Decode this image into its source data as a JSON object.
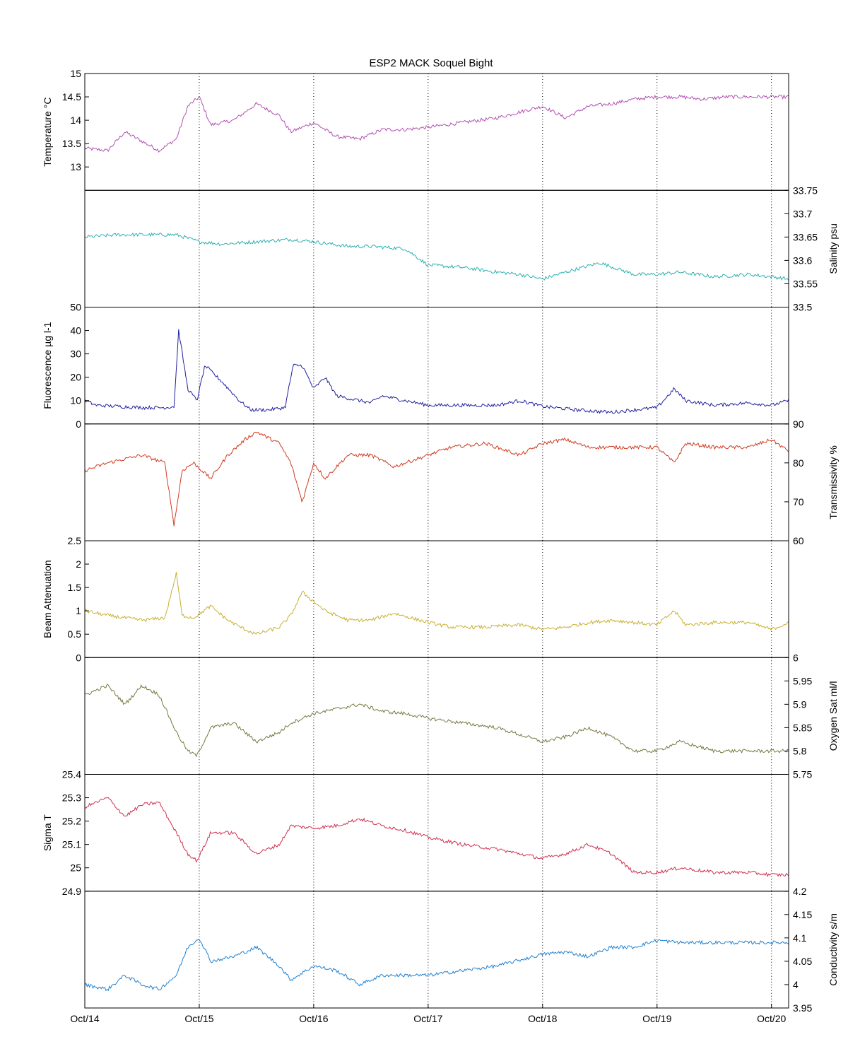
{
  "title": "ESP2 MACK  Soquel Bight",
  "chart_data": {
    "type": "line",
    "grid": "vertical dotted lines at day boundaries",
    "x_tick_labels": [
      "Oct/14",
      "Oct/15",
      "Oct/16",
      "Oct/17",
      "Oct/18",
      "Oct/19",
      "Oct/20"
    ],
    "x_ticks_days": [
      0,
      1,
      2,
      3,
      4,
      5,
      6
    ],
    "xlim_days": [
      0,
      6.15
    ],
    "panels": [
      {
        "ylabel": "Temperature °C",
        "axis_side": "left",
        "color": "#b050b0",
        "ylim": [
          12.5,
          15
        ],
        "ticks": [
          13,
          13.5,
          14,
          14.5,
          15
        ],
        "tick_labels": [
          "13",
          "13.5",
          "14",
          "14.5",
          "15"
        ],
        "x": [
          0,
          0.2,
          0.35,
          0.5,
          0.65,
          0.8,
          0.9,
          1.0,
          1.1,
          1.3,
          1.5,
          1.7,
          1.8,
          2.0,
          2.2,
          2.4,
          2.6,
          2.8,
          3.0,
          3.3,
          3.6,
          4.0,
          4.2,
          4.4,
          4.6,
          4.8,
          5.0,
          5.2,
          5.4,
          5.6,
          5.8,
          6.0,
          6.15
        ],
        "y": [
          13.4,
          13.35,
          13.75,
          13.55,
          13.35,
          13.6,
          14.3,
          14.5,
          13.9,
          14.0,
          14.35,
          14.1,
          13.75,
          13.95,
          13.65,
          13.6,
          13.8,
          13.8,
          13.85,
          13.95,
          14.05,
          14.3,
          14.05,
          14.3,
          14.35,
          14.45,
          14.5,
          14.5,
          14.45,
          14.5,
          14.5,
          14.5,
          14.5
        ]
      },
      {
        "ylabel": "Salinity psu",
        "axis_side": "right",
        "color": "#30b0b0",
        "ylim": [
          33.5,
          33.75
        ],
        "ticks": [
          33.5,
          33.55,
          33.6,
          33.65,
          33.7,
          33.75
        ],
        "tick_labels": [
          "33.5",
          "33.55",
          "33.6",
          "33.65",
          "33.7",
          "33.75"
        ],
        "x": [
          0,
          0.3,
          0.6,
          0.8,
          1.0,
          1.2,
          1.5,
          1.8,
          2.0,
          2.3,
          2.5,
          2.8,
          3.0,
          3.3,
          3.6,
          3.8,
          4.0,
          4.2,
          4.5,
          4.8,
          5.0,
          5.2,
          5.5,
          5.8,
          6.0,
          6.15
        ],
        "y": [
          33.65,
          33.655,
          33.655,
          33.655,
          33.64,
          33.635,
          33.64,
          33.645,
          33.64,
          33.63,
          33.63,
          33.625,
          33.59,
          33.585,
          33.575,
          33.57,
          33.56,
          33.575,
          33.595,
          33.57,
          33.57,
          33.575,
          33.565,
          33.57,
          33.565,
          33.56
        ]
      },
      {
        "ylabel": "Fluorescence µg l-1",
        "axis_side": "left",
        "color": "#2020a0",
        "ylim": [
          0,
          50
        ],
        "ticks": [
          0,
          10,
          20,
          30,
          40,
          50
        ],
        "tick_labels": [
          "0",
          "10",
          "20",
          "30",
          "40",
          "50"
        ],
        "x": [
          0,
          0.1,
          0.3,
          0.5,
          0.7,
          0.78,
          0.82,
          0.9,
          0.98,
          1.05,
          1.2,
          1.35,
          1.45,
          1.6,
          1.75,
          1.82,
          1.9,
          2.0,
          2.1,
          2.2,
          2.5,
          2.6,
          2.8,
          3.0,
          3.3,
          3.6,
          3.8,
          4.0,
          4.3,
          4.6,
          5.0,
          5.15,
          5.25,
          5.5,
          5.8,
          6.0,
          6.15
        ],
        "y": [
          10,
          8,
          7.5,
          7,
          7,
          7.5,
          40,
          15,
          10,
          25,
          18,
          10,
          6,
          6,
          7,
          25,
          25,
          15,
          20,
          12,
          9,
          12,
          10,
          8,
          8,
          8,
          10,
          7.5,
          6,
          5,
          7,
          15,
          10,
          8,
          9,
          8,
          10
        ]
      },
      {
        "ylabel": "Transmissivity %",
        "axis_side": "right",
        "color": "#d03a20",
        "ylim": [
          60,
          90
        ],
        "ticks": [
          60,
          70,
          80,
          90
        ],
        "tick_labels": [
          "60",
          "70",
          "80",
          "90"
        ],
        "x": [
          0,
          0.2,
          0.5,
          0.7,
          0.78,
          0.85,
          0.95,
          1.1,
          1.25,
          1.4,
          1.5,
          1.7,
          1.8,
          1.9,
          2.0,
          2.1,
          2.3,
          2.5,
          2.7,
          3.0,
          3.2,
          3.5,
          3.8,
          4.0,
          4.2,
          4.4,
          4.6,
          4.8,
          5.0,
          5.15,
          5.25,
          5.5,
          5.8,
          6.0,
          6.15
        ],
        "y": [
          78,
          80,
          82,
          80,
          64,
          78,
          80,
          76,
          82,
          86,
          88,
          85,
          80,
          70,
          80,
          76,
          82,
          82,
          79,
          82,
          84,
          85,
          82,
          85,
          86,
          84,
          84,
          84,
          84,
          80,
          85,
          84,
          84,
          86,
          83
        ]
      },
      {
        "ylabel": "Beam Attenuation",
        "axis_side": "left",
        "color": "#c8b030",
        "ylim": [
          0,
          2.5
        ],
        "ticks": [
          0,
          0.5,
          1,
          1.5,
          2,
          2.5
        ],
        "tick_labels": [
          "0",
          "0.5",
          "1",
          "1.5",
          "2",
          "2.5"
        ],
        "x": [
          0,
          0.2,
          0.5,
          0.7,
          0.8,
          0.85,
          0.95,
          1.1,
          1.25,
          1.4,
          1.5,
          1.7,
          1.8,
          1.9,
          2.0,
          2.1,
          2.3,
          2.5,
          2.7,
          3.0,
          3.2,
          3.5,
          3.8,
          4.0,
          4.2,
          4.4,
          4.6,
          4.8,
          5.0,
          5.15,
          5.25,
          5.5,
          5.8,
          6.0,
          6.15
        ],
        "y": [
          1.0,
          0.9,
          0.8,
          0.85,
          1.8,
          0.9,
          0.85,
          1.1,
          0.8,
          0.6,
          0.5,
          0.65,
          0.9,
          1.4,
          1.2,
          1.0,
          0.8,
          0.8,
          0.95,
          0.75,
          0.65,
          0.65,
          0.7,
          0.6,
          0.65,
          0.75,
          0.8,
          0.75,
          0.7,
          1.0,
          0.7,
          0.75,
          0.75,
          0.6,
          0.75
        ]
      },
      {
        "ylabel": "Oxygen Sat ml/l",
        "axis_side": "right",
        "color": "#787840",
        "ylim": [
          5.75,
          6
        ],
        "ticks": [
          5.75,
          5.8,
          5.85,
          5.9,
          5.95,
          6
        ],
        "tick_labels": [
          "5.75",
          "5.8",
          "5.85",
          "5.9",
          "5.95",
          "6"
        ],
        "x": [
          0,
          0.1,
          0.2,
          0.35,
          0.5,
          0.65,
          0.8,
          0.9,
          0.98,
          1.1,
          1.3,
          1.5,
          1.7,
          1.8,
          2.0,
          2.2,
          2.4,
          2.6,
          2.8,
          3.0,
          3.3,
          3.6,
          4.0,
          4.2,
          4.4,
          4.6,
          4.8,
          5.0,
          5.2,
          5.5,
          5.8,
          6.0,
          6.15
        ],
        "y": [
          5.92,
          5.93,
          5.94,
          5.9,
          5.94,
          5.92,
          5.84,
          5.8,
          5.79,
          5.85,
          5.86,
          5.82,
          5.84,
          5.86,
          5.88,
          5.89,
          5.9,
          5.885,
          5.88,
          5.87,
          5.86,
          5.85,
          5.82,
          5.83,
          5.85,
          5.83,
          5.8,
          5.8,
          5.82,
          5.8,
          5.8,
          5.8,
          5.8
        ]
      },
      {
        "ylabel": "Sigma T",
        "axis_side": "left",
        "color": "#d03050",
        "ylim": [
          24.9,
          25.4
        ],
        "ticks": [
          24.9,
          25,
          25.1,
          25.2,
          25.3,
          25.4
        ],
        "tick_labels": [
          "24.9",
          "25",
          "25.1",
          "25.2",
          "25.3",
          "25.4"
        ],
        "x": [
          0,
          0.1,
          0.2,
          0.35,
          0.5,
          0.65,
          0.8,
          0.9,
          0.98,
          1.1,
          1.3,
          1.5,
          1.7,
          1.8,
          2.0,
          2.2,
          2.4,
          2.6,
          2.8,
          3.0,
          3.3,
          3.6,
          4.0,
          4.2,
          4.4,
          4.6,
          4.8,
          5.0,
          5.2,
          5.5,
          5.8,
          6.0,
          6.15
        ],
        "y": [
          25.26,
          25.28,
          25.3,
          25.22,
          25.27,
          25.28,
          25.15,
          25.06,
          25.03,
          25.15,
          25.15,
          25.06,
          25.1,
          25.18,
          25.17,
          25.18,
          25.21,
          25.18,
          25.16,
          25.13,
          25.1,
          25.08,
          25.04,
          25.06,
          25.1,
          25.06,
          24.98,
          24.98,
          25.0,
          24.98,
          24.98,
          24.97,
          24.97
        ]
      },
      {
        "ylabel": "Conductivity s/m",
        "axis_side": "right",
        "color": "#2080d0",
        "ylim": [
          3.95,
          4.2
        ],
        "ticks": [
          3.95,
          4,
          4.05,
          4.1,
          4.15,
          4.2
        ],
        "tick_labels": [
          "3.95",
          "4",
          "4.05",
          "4.1",
          "4.15",
          "4.2"
        ],
        "x": [
          0,
          0.2,
          0.35,
          0.5,
          0.65,
          0.8,
          0.9,
          1.0,
          1.1,
          1.3,
          1.5,
          1.7,
          1.8,
          2.0,
          2.2,
          2.4,
          2.6,
          2.8,
          3.0,
          3.3,
          3.6,
          4.0,
          4.2,
          4.4,
          4.6,
          4.8,
          5.0,
          5.2,
          5.4,
          5.6,
          5.8,
          6.0,
          6.15
        ],
        "y": [
          4.0,
          3.99,
          4.02,
          4.0,
          3.99,
          4.02,
          4.08,
          4.1,
          4.05,
          4.06,
          4.08,
          4.04,
          4.01,
          4.04,
          4.03,
          4.0,
          4.02,
          4.02,
          4.02,
          4.03,
          4.04,
          4.065,
          4.07,
          4.06,
          4.08,
          4.08,
          4.095,
          4.09,
          4.09,
          4.09,
          4.09,
          4.09,
          4.09
        ]
      }
    ]
  }
}
